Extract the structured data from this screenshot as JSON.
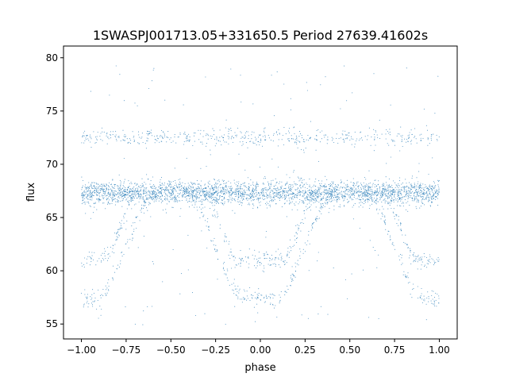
{
  "chart_data": {
    "type": "scatter",
    "title": "1SWASPJ001713.05+331650.5 Period 27639.41602s",
    "xlabel": "phase",
    "ylabel": "flux",
    "xlim": [
      -1.1,
      1.1
    ],
    "ylim": [
      53.6,
      81.1
    ],
    "grid": false,
    "point_color": "#1f77b4",
    "x_ticks": [
      -1.0,
      -0.75,
      -0.5,
      -0.25,
      0.0,
      0.25,
      0.5,
      0.75,
      1.0
    ],
    "x_tick_labels": [
      "−1.00",
      "−0.75",
      "−0.50",
      "−0.25",
      "0.00",
      "0.25",
      "0.50",
      "0.75",
      "1.00"
    ],
    "y_ticks": [
      55,
      60,
      65,
      70,
      75,
      80
    ],
    "y_tick_labels": [
      "55",
      "60",
      "65",
      "70",
      "75",
      "80"
    ],
    "x_range": [
      -1.0,
      1.0
    ],
    "components": [
      {
        "name": "baseline",
        "flux": 67.3,
        "scatter": 0.55,
        "phase_range": [
          -1.0,
          1.0
        ]
      },
      {
        "name": "upper band",
        "flux": 72.5,
        "scatter": 0.4,
        "phase_range": [
          -1.0,
          1.0
        ]
      },
      {
        "name": "deep eclipse",
        "center_phase": 0.0,
        "min_flux": 57.3,
        "half_width": 0.42,
        "flat_half_width": 0.08
      },
      {
        "name": "shallow eclipse",
        "center_phase": 0.0,
        "min_flux": 61.0,
        "half_width": 0.32,
        "flat_half_width": 0.12
      },
      {
        "name": "outliers",
        "flux_range": [
          54.5,
          80.0
        ]
      }
    ]
  }
}
